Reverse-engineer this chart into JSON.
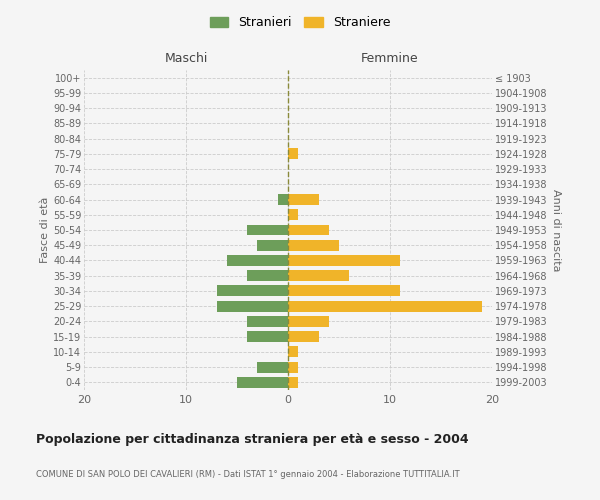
{
  "age_groups": [
    "0-4",
    "5-9",
    "10-14",
    "15-19",
    "20-24",
    "25-29",
    "30-34",
    "35-39",
    "40-44",
    "45-49",
    "50-54",
    "55-59",
    "60-64",
    "65-69",
    "70-74",
    "75-79",
    "80-84",
    "85-89",
    "90-94",
    "95-99",
    "100+"
  ],
  "birth_years": [
    "1999-2003",
    "1994-1998",
    "1989-1993",
    "1984-1988",
    "1979-1983",
    "1974-1978",
    "1969-1973",
    "1964-1968",
    "1959-1963",
    "1954-1958",
    "1949-1953",
    "1944-1948",
    "1939-1943",
    "1934-1938",
    "1929-1933",
    "1924-1928",
    "1919-1923",
    "1914-1918",
    "1909-1913",
    "1904-1908",
    "≤ 1903"
  ],
  "maschi": [
    5,
    3,
    0,
    4,
    4,
    7,
    7,
    4,
    6,
    3,
    4,
    0,
    1,
    0,
    0,
    0,
    0,
    0,
    0,
    0,
    0
  ],
  "femmine": [
    1,
    1,
    1,
    3,
    4,
    19,
    11,
    6,
    11,
    5,
    4,
    1,
    3,
    0,
    0,
    1,
    0,
    0,
    0,
    0,
    0
  ],
  "maschi_color": "#6d9e5a",
  "femmine_color": "#f0b429",
  "background_color": "#f5f5f5",
  "grid_color": "#cccccc",
  "title": "Popolazione per cittadinanza straniera per età e sesso - 2004",
  "subtitle": "COMUNE DI SAN POLO DEI CAVALIERI (RM) - Dati ISTAT 1° gennaio 2004 - Elaborazione TUTTITALIA.IT",
  "xlabel_left": "Maschi",
  "xlabel_right": "Femmine",
  "ylabel_left": "Fasce di età",
  "ylabel_right": "Anni di nascita",
  "legend_stranieri": "Stranieri",
  "legend_straniere": "Straniere",
  "xlim": 20,
  "dashed_line_color": "#8a8a3a"
}
